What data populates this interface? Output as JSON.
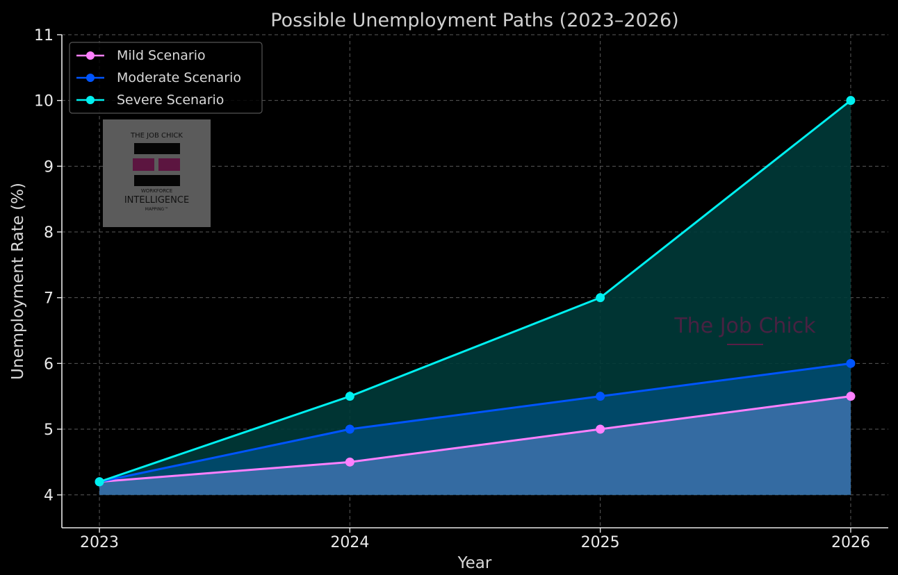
{
  "chart_data": {
    "type": "area",
    "title": "Possible Unemployment Paths (2023–2026)",
    "xlabel": "Year",
    "ylabel": "Unemployment Rate (%)",
    "x": [
      2023,
      2024,
      2025,
      2026
    ],
    "xlim": [
      2022.85,
      2026.15
    ],
    "ylim": [
      3.5,
      11
    ],
    "yticks": [
      4,
      5,
      6,
      7,
      8,
      9,
      10,
      11
    ],
    "grid": true,
    "legend_position": "top-left",
    "fill_baseline": 4,
    "series": [
      {
        "name": "Mild Scenario",
        "values": [
          4.2,
          4.5,
          5.0,
          5.5
        ],
        "color": "#ff80ff",
        "fill": "#3a6fa8"
      },
      {
        "name": "Moderate Scenario",
        "values": [
          4.2,
          5.0,
          5.5,
          6.0
        ],
        "color": "#0055ff",
        "fill": "#004a6e"
      },
      {
        "name": "Severe Scenario",
        "values": [
          4.2,
          5.5,
          7.0,
          10.0
        ],
        "color": "#00f0f0",
        "fill": "#003a38"
      }
    ]
  },
  "watermark": {
    "text": "The Job Chick"
  },
  "logo": {
    "top_text": "THE JOB CHICK",
    "line1": "WORKFORCE",
    "line2": "INTELLIGENCE",
    "line3": "MAPPING™"
  }
}
